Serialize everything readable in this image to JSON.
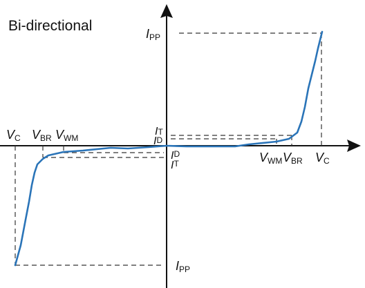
{
  "title": "Bi-directional",
  "labels": {
    "ipp_top_main": "I",
    "ipp_top_sub": "PP",
    "ipp_bottom_main": "I",
    "ipp_bottom_sub": "PP",
    "it_top_main": "I",
    "it_top_sub": "T",
    "id_top_main": "I",
    "id_top_sub": "D",
    "id_bottom_main": "I",
    "id_bottom_sub": "D",
    "it_bottom_main": "I",
    "it_bottom_sub": "T",
    "vc_left_main": "V",
    "vc_left_sub": "C",
    "vbr_left_main": "V",
    "vbr_left_sub": "BR",
    "vwm_left_main": "V",
    "vwm_left_sub": "WM",
    "vwm_right_main": "V",
    "vwm_right_sub": "WM",
    "vbr_right_main": "V",
    "vbr_right_sub": "BR",
    "vc_right_main": "V",
    "vc_right_sub": "C"
  },
  "colors": {
    "axis": "#111111",
    "curve": "#2a74b8",
    "dashed": "#333333"
  }
}
